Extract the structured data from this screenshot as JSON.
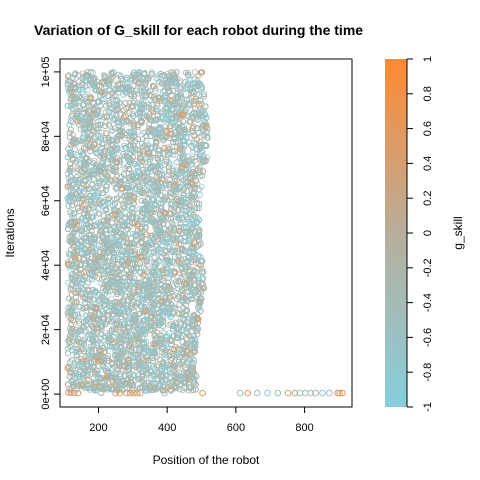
{
  "chart_data": {
    "type": "scatter",
    "title": "Variation of G_skill for each robot during the time",
    "xlabel": "Position of the robot",
    "ylabel": "Iterations",
    "xlim": [
      88,
      938
    ],
    "ylim": [
      -4000,
      104000
    ],
    "x_ticks": [
      200,
      400,
      600,
      800
    ],
    "y_ticks": [
      {
        "value": 0,
        "label": "0e+00"
      },
      {
        "value": 20000,
        "label": "2e+04"
      },
      {
        "value": 40000,
        "label": "4e+04"
      },
      {
        "value": 60000,
        "label": "6e+04"
      },
      {
        "value": 80000,
        "label": "8e+04"
      },
      {
        "value": 100000,
        "label": "1e+05"
      }
    ],
    "marker": "open-circle",
    "dense_region": {
      "x_range": [
        110,
        515
      ],
      "y_range": [
        1000,
        100000
      ],
      "description_hidden": true
    },
    "bottom_points": [
      {
        "x": 113,
        "y": 500,
        "g": 0.6
      },
      {
        "x": 120,
        "y": 400,
        "g": 0.3
      },
      {
        "x": 130,
        "y": 400,
        "g": 0.5
      },
      {
        "x": 140,
        "y": 300,
        "g": 0.4
      },
      {
        "x": 208,
        "y": 400,
        "g": -0.2
      },
      {
        "x": 250,
        "y": 300,
        "g": 0.4
      },
      {
        "x": 262,
        "y": 300,
        "g": 0.5
      },
      {
        "x": 282,
        "y": 300,
        "g": 0.3
      },
      {
        "x": 292,
        "y": 300,
        "g": 0.5
      },
      {
        "x": 302,
        "y": 300,
        "g": 0.6
      },
      {
        "x": 312,
        "y": 300,
        "g": 0.4
      },
      {
        "x": 322,
        "y": 300,
        "g": 0.2
      },
      {
        "x": 392,
        "y": 300,
        "g": -0.5
      },
      {
        "x": 503,
        "y": 300,
        "g": 0.6
      },
      {
        "x": 612,
        "y": 300,
        "g": -0.4
      },
      {
        "x": 634,
        "y": 300,
        "g": 0.6
      },
      {
        "x": 662,
        "y": 300,
        "g": -0.5
      },
      {
        "x": 692,
        "y": 300,
        "g": -0.7
      },
      {
        "x": 722,
        "y": 300,
        "g": -0.4
      },
      {
        "x": 752,
        "y": 300,
        "g": 0.2
      },
      {
        "x": 772,
        "y": 300,
        "g": 0.4
      },
      {
        "x": 786,
        "y": 300,
        "g": -0.8
      },
      {
        "x": 802,
        "y": 300,
        "g": -0.3
      },
      {
        "x": 818,
        "y": 300,
        "g": -0.6
      },
      {
        "x": 832,
        "y": 300,
        "g": 0.0
      },
      {
        "x": 852,
        "y": 300,
        "g": -0.9
      },
      {
        "x": 872,
        "y": 300,
        "g": -0.5
      },
      {
        "x": 896,
        "y": 300,
        "g": 0.7
      },
      {
        "x": 902,
        "y": 300,
        "g": 0.5
      },
      {
        "x": 910,
        "y": 300,
        "g": 0.6
      }
    ],
    "colorbar": {
      "label": "g_skill",
      "range": [
        -1,
        1
      ],
      "ticks": [
        "-1",
        "-0.8",
        "-0.6",
        "-0.4",
        "-0.2",
        "0",
        "0.2",
        "0.4",
        "0.6",
        "0.8",
        "1"
      ],
      "color_low": "#87cfde",
      "color_mid": "#b8ad9b",
      "color_high": "#ff8a33"
    }
  }
}
